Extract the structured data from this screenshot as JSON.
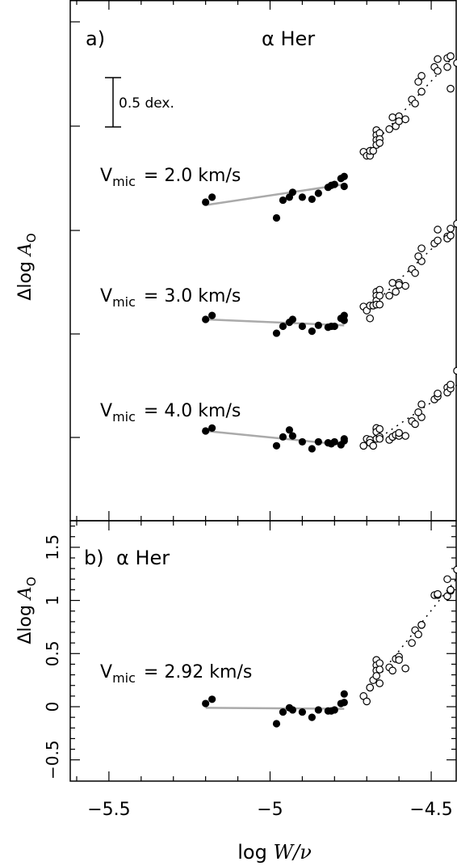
{
  "xaxis": {
    "label_plain": "log ",
    "label_italic": "W/ν",
    "ticks": [
      "−5.5",
      "−5",
      "−4.5"
    ],
    "xlim": [
      -5.62,
      -4.42
    ]
  },
  "panel_a": {
    "tag": "a)",
    "star": "α Her",
    "ylabel_plain": "Δlog ",
    "ylabel_italic": "A",
    "ylabel_sub": "O",
    "scale_bar": "0.5 dex.",
    "vmic_labels": [
      {
        "prefix": "V",
        "sub": "mic",
        "value": "= 2.0 km/s"
      },
      {
        "prefix": "V",
        "sub": "mic",
        "value": "= 3.0 km/s"
      },
      {
        "prefix": "V",
        "sub": "mic",
        "value": "= 4.0 km/s"
      }
    ]
  },
  "panel_b": {
    "tag": "b)",
    "star": "α Her",
    "ylabel_plain": "Δlog ",
    "ylabel_italic": "A",
    "ylabel_sub": "O",
    "yticks": [
      "−0.5",
      "0",
      "0.5",
      "1",
      "1.5"
    ],
    "vmic_label": {
      "prefix": "V",
      "sub": "mic",
      "value": "= 2.92 km/s"
    }
  },
  "chart_data": [
    {
      "panel": "a",
      "type": "scatter",
      "x_axis": "log W/ν",
      "y_axis": "Δlog A_O (curves vertically offset)",
      "series": [
        {
          "name": "V_mic = 2.0 km/s",
          "filled": [
            [
              -5.2,
              1.21
            ],
            [
              -5.18,
              1.26
            ],
            [
              -4.98,
              1.05
            ],
            [
              -4.96,
              1.23
            ],
            [
              -4.94,
              1.26
            ],
            [
              -4.93,
              1.31
            ],
            [
              -4.9,
              1.26
            ],
            [
              -4.87,
              1.24
            ],
            [
              -4.85,
              1.3
            ],
            [
              -4.82,
              1.36
            ],
            [
              -4.81,
              1.38
            ],
            [
              -4.8,
              1.39
            ],
            [
              -4.78,
              1.45
            ],
            [
              -4.77,
              1.47
            ],
            [
              -4.77,
              1.37
            ]
          ],
          "open": [
            [
              -4.71,
              1.72
            ],
            [
              -4.7,
              1.68
            ],
            [
              -4.69,
              1.68
            ],
            [
              -4.69,
              1.73
            ],
            [
              -4.68,
              1.73
            ],
            [
              -4.67,
              1.94
            ],
            [
              -4.67,
              1.89
            ],
            [
              -4.67,
              1.84
            ],
            [
              -4.67,
              1.79
            ],
            [
              -4.66,
              1.91
            ],
            [
              -4.66,
              1.85
            ],
            [
              -4.66,
              1.81
            ],
            [
              -4.63,
              1.95
            ],
            [
              -4.62,
              2.07
            ],
            [
              -4.61,
              1.98
            ],
            [
              -4.6,
              2.08
            ],
            [
              -4.6,
              2.03
            ],
            [
              -4.58,
              2.05
            ],
            [
              -4.56,
              2.25
            ],
            [
              -4.55,
              2.21
            ],
            [
              -4.53,
              2.33
            ],
            [
              -4.54,
              2.43
            ],
            [
              -4.53,
              2.49
            ],
            [
              -4.49,
              2.58
            ],
            [
              -4.48,
              2.54
            ],
            [
              -4.48,
              2.66
            ],
            [
              -4.45,
              2.67
            ],
            [
              -4.45,
              2.58
            ],
            [
              -4.44,
              2.69
            ],
            [
              -4.44,
              2.36
            ],
            [
              -4.42,
              2.62
            ]
          ],
          "fit": [
            [
              -5.2,
              1.18
            ],
            [
              -4.77,
              1.39
            ]
          ]
        },
        {
          "name": "V_mic = 3.0 km/s",
          "filled": [
            [
              -5.2,
              0.5
            ],
            [
              -5.18,
              0.54
            ],
            [
              -4.98,
              0.36
            ],
            [
              -4.96,
              0.43
            ],
            [
              -4.94,
              0.47
            ],
            [
              -4.93,
              0.5
            ],
            [
              -4.9,
              0.43
            ],
            [
              -4.87,
              0.38
            ],
            [
              -4.85,
              0.44
            ],
            [
              -4.82,
              0.42
            ],
            [
              -4.81,
              0.43
            ],
            [
              -4.8,
              0.43
            ],
            [
              -4.78,
              0.51
            ],
            [
              -4.77,
              0.54
            ],
            [
              -4.77,
              0.49
            ]
          ],
          "open": [
            [
              -4.71,
              0.63
            ],
            [
              -4.7,
              0.59
            ],
            [
              -4.69,
              0.64
            ],
            [
              -4.69,
              0.51
            ],
            [
              -4.68,
              0.64
            ],
            [
              -4.67,
              0.78
            ],
            [
              -4.67,
              0.74
            ],
            [
              -4.67,
              0.69
            ],
            [
              -4.67,
              0.65
            ],
            [
              -4.66,
              0.8
            ],
            [
              -4.66,
              0.74
            ],
            [
              -4.66,
              0.65
            ],
            [
              -4.63,
              0.74
            ],
            [
              -4.62,
              0.87
            ],
            [
              -4.61,
              0.78
            ],
            [
              -4.6,
              0.87
            ],
            [
              -4.6,
              0.85
            ],
            [
              -4.58,
              0.84
            ],
            [
              -4.56,
              1.01
            ],
            [
              -4.55,
              0.97
            ],
            [
              -4.53,
              1.09
            ],
            [
              -4.54,
              1.14
            ],
            [
              -4.53,
              1.22
            ],
            [
              -4.49,
              1.27
            ],
            [
              -4.48,
              1.3
            ],
            [
              -4.48,
              1.41
            ],
            [
              -4.45,
              1.34
            ],
            [
              -4.45,
              1.32
            ],
            [
              -4.44,
              1.35
            ],
            [
              -4.44,
              1.42
            ],
            [
              -4.42,
              1.47
            ]
          ],
          "fit": [
            [
              -5.2,
              0.5
            ],
            [
              -4.77,
              0.44
            ]
          ]
        },
        {
          "name": "V_mic = 4.0 km/s",
          "filled": [
            [
              -5.2,
              0.03
            ],
            [
              -5.18,
              0.06
            ],
            [
              -4.98,
              -0.12
            ],
            [
              -4.96,
              -0.03
            ],
            [
              -4.94,
              0.04
            ],
            [
              -4.93,
              -0.02
            ],
            [
              -4.9,
              -0.08
            ],
            [
              -4.87,
              -0.15
            ],
            [
              -4.85,
              -0.08
            ],
            [
              -4.82,
              -0.09
            ],
            [
              -4.81,
              -0.1
            ],
            [
              -4.8,
              -0.08
            ],
            [
              -4.78,
              -0.11
            ],
            [
              -4.77,
              -0.07
            ],
            [
              -4.77,
              -0.05
            ]
          ],
          "open": [
            [
              -4.71,
              -0.12
            ],
            [
              -4.7,
              -0.05
            ],
            [
              -4.69,
              -0.06
            ],
            [
              -4.69,
              -0.09
            ],
            [
              -4.68,
              -0.12
            ],
            [
              -4.67,
              0.05
            ],
            [
              -4.67,
              0.06
            ],
            [
              -4.67,
              0.02
            ],
            [
              -4.67,
              -0.05
            ],
            [
              -4.66,
              0.05
            ],
            [
              -4.66,
              -0.03
            ],
            [
              -4.66,
              -0.05
            ],
            [
              -4.63,
              -0.06
            ],
            [
              -4.62,
              -0.03
            ],
            [
              -4.61,
              -0.01
            ],
            [
              -4.6,
              -0.02
            ],
            [
              -4.6,
              0.01
            ],
            [
              -4.58,
              -0.02
            ],
            [
              -4.56,
              0.13
            ],
            [
              -4.55,
              0.1
            ],
            [
              -4.53,
              0.17
            ],
            [
              -4.54,
              0.22
            ],
            [
              -4.53,
              0.3
            ],
            [
              -4.49,
              0.35
            ],
            [
              -4.48,
              0.38
            ],
            [
              -4.48,
              0.41
            ],
            [
              -4.45,
              0.47
            ],
            [
              -4.45,
              0.42
            ],
            [
              -4.44,
              0.46
            ],
            [
              -4.44,
              0.5
            ],
            [
              -4.42,
              0.64
            ]
          ],
          "fit": [
            [
              -5.2,
              0.03
            ],
            [
              -4.77,
              -0.11
            ]
          ]
        }
      ]
    },
    {
      "panel": "b",
      "type": "scatter",
      "x_axis": "log W/ν",
      "y_axis": "Δlog A_O",
      "ylim": [
        -0.7,
        1.75
      ],
      "series": [
        {
          "name": "V_mic = 2.92 km/s",
          "filled": [
            [
              -5.2,
              0.03
            ],
            [
              -5.18,
              0.07
            ],
            [
              -4.98,
              -0.16
            ],
            [
              -4.96,
              -0.05
            ],
            [
              -4.94,
              -0.01
            ],
            [
              -4.93,
              -0.03
            ],
            [
              -4.9,
              -0.05
            ],
            [
              -4.87,
              -0.1
            ],
            [
              -4.85,
              -0.03
            ],
            [
              -4.82,
              -0.04
            ],
            [
              -4.81,
              -0.04
            ],
            [
              -4.8,
              -0.03
            ],
            [
              -4.78,
              0.03
            ],
            [
              -4.77,
              0.04
            ],
            [
              -4.77,
              0.12
            ]
          ],
          "open": [
            [
              -4.71,
              0.1
            ],
            [
              -4.7,
              0.05
            ],
            [
              -4.69,
              0.18
            ],
            [
              -4.69,
              0.18
            ],
            [
              -4.68,
              0.25
            ],
            [
              -4.67,
              0.44
            ],
            [
              -4.67,
              0.39
            ],
            [
              -4.67,
              0.34
            ],
            [
              -4.67,
              0.29
            ],
            [
              -4.66,
              0.41
            ],
            [
              -4.66,
              0.35
            ],
            [
              -4.66,
              0.22
            ],
            [
              -4.63,
              0.37
            ],
            [
              -4.62,
              0.34
            ],
            [
              -4.61,
              0.45
            ],
            [
              -4.6,
              0.47
            ],
            [
              -4.6,
              0.44
            ],
            [
              -4.58,
              0.36
            ],
            [
              -4.56,
              0.6
            ],
            [
              -4.55,
              0.72
            ],
            [
              -4.53,
              0.77
            ],
            [
              -4.54,
              0.68
            ],
            [
              -4.53,
              0.77
            ],
            [
              -4.49,
              1.05
            ],
            [
              -4.48,
              1.05
            ],
            [
              -4.48,
              1.06
            ],
            [
              -4.45,
              1.2
            ],
            [
              -4.45,
              1.04
            ],
            [
              -4.44,
              1.09
            ],
            [
              -4.44,
              1.1
            ],
            [
              -4.42,
              1.29
            ]
          ],
          "fit": [
            [
              -5.2,
              -0.01
            ],
            [
              -4.77,
              -0.02
            ]
          ]
        }
      ]
    }
  ]
}
